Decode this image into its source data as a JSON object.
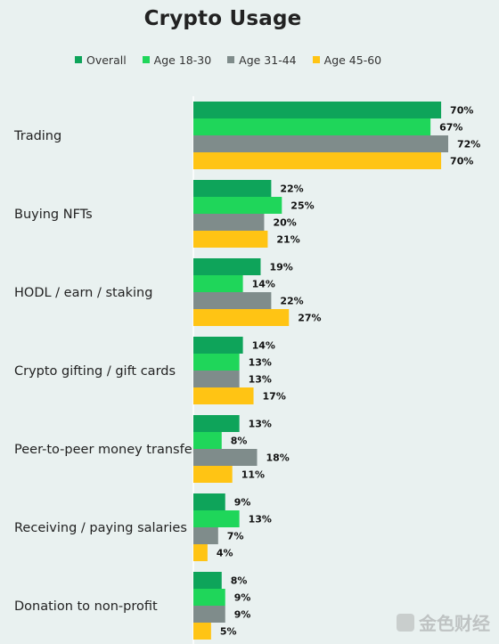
{
  "chart_data": {
    "type": "bar",
    "orientation": "horizontal",
    "title": "Crypto Usage",
    "categories": [
      "Trading",
      "Buying NFTs",
      "HODL / earn / staking",
      "Crypto gifting / gift cards",
      "Peer-to-peer money transfer",
      "Receiving / paying salaries",
      "Donation to non-profit"
    ],
    "series": [
      {
        "name": "Overall",
        "color": "#0ea45a",
        "values": [
          70,
          22,
          19,
          14,
          13,
          9,
          8
        ]
      },
      {
        "name": "Age 18-30",
        "color": "#1fd65a",
        "values": [
          67,
          25,
          14,
          13,
          8,
          13,
          9
        ]
      },
      {
        "name": "Age 31-44",
        "color": "#7f8c8b",
        "values": [
          72,
          20,
          22,
          13,
          18,
          7,
          9
        ]
      },
      {
        "name": "Age 45-60",
        "color": "#ffc414",
        "values": [
          70,
          21,
          27,
          17,
          11,
          4,
          5
        ]
      }
    ],
    "value_suffix": "%",
    "xlim": [
      0,
      72
    ],
    "legend_position": "top",
    "grid": false
  },
  "watermark": "金色财经"
}
